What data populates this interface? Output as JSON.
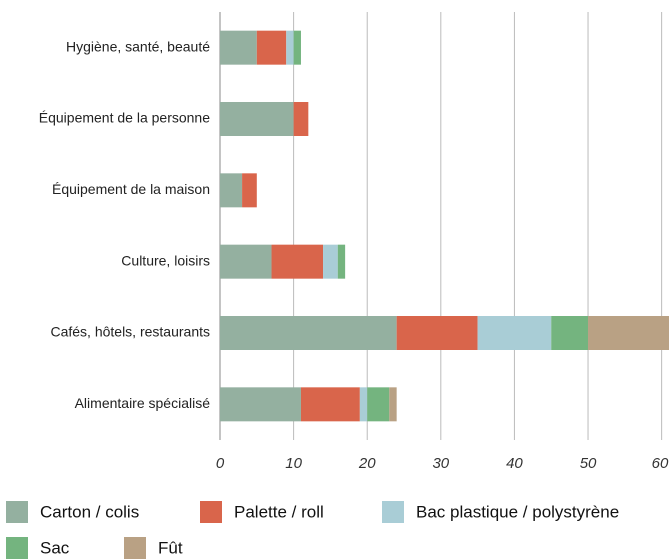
{
  "chart_data": {
    "type": "stacked_barh",
    "categories": [
      "Hygiène, santé, beauté",
      "Équipement de la personne",
      "Équipement de la maison",
      "Culture, loisirs",
      "Cafés, hôtels, restaurants",
      "Alimentaire spécialisé"
    ],
    "series": [
      {
        "name": "Carton / colis",
        "color": "#94b0a0",
        "values": [
          5,
          10,
          3,
          7,
          24,
          11
        ]
      },
      {
        "name": "Palette / roll",
        "color": "#d9654b",
        "values": [
          4,
          2,
          2,
          7,
          11,
          8
        ]
      },
      {
        "name": "Bac plastique / polystyrène",
        "color": "#a9cdd6",
        "values": [
          1,
          0,
          0,
          2,
          10,
          1
        ]
      },
      {
        "name": "Sac",
        "color": "#74b47f",
        "values": [
          1,
          0,
          0,
          1,
          5,
          3
        ]
      },
      {
        "name": "Fût",
        "color": "#b9a184",
        "values": [
          0,
          0,
          0,
          0,
          11,
          1
        ]
      }
    ],
    "xlim": [
      0,
      61
    ],
    "xticks": [
      0,
      10,
      20,
      30,
      40,
      50,
      60
    ],
    "grid": true
  }
}
